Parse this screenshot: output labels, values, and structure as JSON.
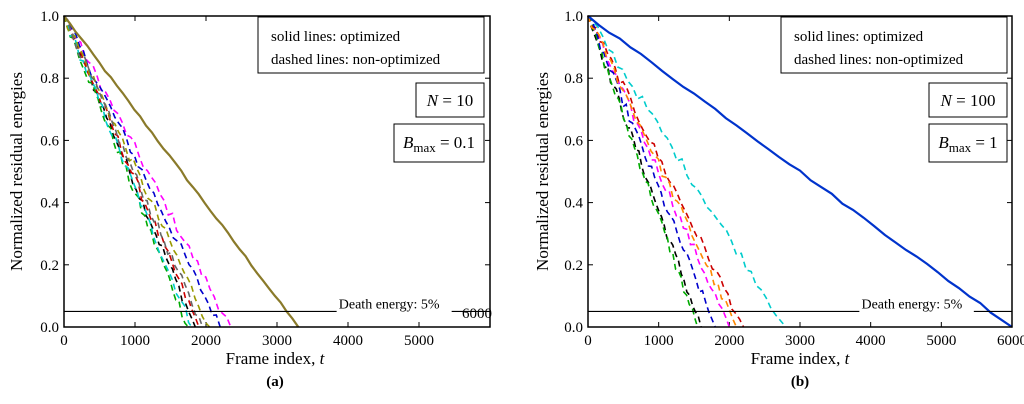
{
  "chart_data": [
    {
      "type": "line",
      "panel_label": "(a)",
      "xlabel": "Frame index, ",
      "xlabel_var": "t",
      "ylabel": "Normalized residual energies",
      "xlim": [
        0,
        6000
      ],
      "ylim": [
        0,
        1.0
      ],
      "xticks": [
        "0",
        "1000",
        "2000",
        "3000",
        "4000",
        "5000",
        "6000"
      ],
      "yticks": [
        "0.0",
        "0.2",
        "0.4",
        "0.6",
        "0.8",
        "1.0"
      ],
      "legend_lines": [
        "solid lines: optimized",
        "dashed lines: non-optimized"
      ],
      "n_label": "N = 10",
      "n_var": "N",
      "n_value": "= 10",
      "b_var": "B",
      "b_sub": "max",
      "b_value": "= 0.1",
      "death_label": "Death energy: 5%",
      "death_energy": 0.05,
      "series": [
        {
          "name": "optimized (avg, N=10)",
          "style": "solid",
          "color": "#8a7a2a",
          "x": [
            0,
            3300
          ],
          "y": [
            1.0,
            0.0
          ]
        },
        {
          "name": "non-optimized 1",
          "style": "dashed",
          "color": "#000000",
          "x": [
            0,
            1850
          ],
          "y": [
            1.0,
            0.0
          ]
        },
        {
          "name": "non-optimized 2",
          "style": "dashed",
          "color": "#ff00ff",
          "x": [
            0,
            2350
          ],
          "y": [
            1.0,
            0.0
          ]
        },
        {
          "name": "non-optimized 3",
          "style": "dashed",
          "color": "#0000cc",
          "x": [
            0,
            2200
          ],
          "y": [
            1.0,
            0.0
          ]
        },
        {
          "name": "non-optimized 4",
          "style": "dashed",
          "color": "#00aa00",
          "x": [
            0,
            1750
          ],
          "y": [
            1.0,
            0.0
          ]
        },
        {
          "name": "non-optimized 5",
          "style": "dashed",
          "color": "#cc0000",
          "x": [
            0,
            1900
          ],
          "y": [
            1.0,
            0.0
          ]
        },
        {
          "name": "non-optimized 6",
          "style": "dashed",
          "color": "#00cccc",
          "x": [
            0,
            1800
          ],
          "y": [
            1.0,
            0.0
          ]
        },
        {
          "name": "non-optimized 7",
          "style": "dashed",
          "color": "#999900",
          "x": [
            0,
            2050
          ],
          "y": [
            1.0,
            0.0
          ]
        },
        {
          "name": "non-optimized 8",
          "style": "dashed",
          "color": "#666666",
          "x": [
            0,
            1950
          ],
          "y": [
            1.0,
            0.0
          ]
        }
      ]
    },
    {
      "type": "line",
      "panel_label": "(b)",
      "xlabel": "Frame index, ",
      "xlabel_var": "t",
      "ylabel": "Normalized residual energies",
      "xlim": [
        0,
        6000
      ],
      "ylim": [
        0,
        1.0
      ],
      "xticks": [
        "0",
        "1000",
        "2000",
        "3000",
        "4000",
        "5000",
        "6000"
      ],
      "yticks": [
        "0.0",
        "0.2",
        "0.4",
        "0.6",
        "0.8",
        "1.0"
      ],
      "legend_lines": [
        "solid lines: optimized",
        "dashed lines: non-optimized"
      ],
      "n_label": "N = 100",
      "n_var": "N",
      "n_value": "= 100",
      "b_var": "B",
      "b_sub": "max",
      "b_value": "= 1",
      "death_label": "Death energy: 5%",
      "death_energy": 0.05,
      "series": [
        {
          "name": "optimized (avg, N=100)",
          "style": "solid",
          "color": "#0033cc",
          "x": [
            0,
            6000
          ],
          "y": [
            1.0,
            0.0
          ]
        },
        {
          "name": "non-optimized 1",
          "style": "dashed",
          "color": "#000000",
          "x": [
            0,
            1600
          ],
          "y": [
            1.0,
            0.0
          ]
        },
        {
          "name": "non-optimized 2",
          "style": "dashed",
          "color": "#ff00ff",
          "x": [
            0,
            2000
          ],
          "y": [
            1.0,
            0.0
          ]
        },
        {
          "name": "non-optimized 3",
          "style": "dashed",
          "color": "#00cccc",
          "x": [
            0,
            2800
          ],
          "y": [
            1.0,
            0.0
          ]
        },
        {
          "name": "non-optimized 4",
          "style": "dashed",
          "color": "#00aa00",
          "x": [
            0,
            1550
          ],
          "y": [
            1.0,
            0.0
          ]
        },
        {
          "name": "non-optimized 5",
          "style": "dashed",
          "color": "#cc0000",
          "x": [
            0,
            2200
          ],
          "y": [
            1.0,
            0.0
          ]
        },
        {
          "name": "non-optimized 6",
          "style": "dashed",
          "color": "#0000cc",
          "x": [
            0,
            1800
          ],
          "y": [
            1.0,
            0.0
          ]
        },
        {
          "name": "non-optimized 7",
          "style": "dashed",
          "color": "#ff8800",
          "x": [
            0,
            2100
          ],
          "y": [
            1.0,
            0.0
          ]
        }
      ]
    }
  ]
}
